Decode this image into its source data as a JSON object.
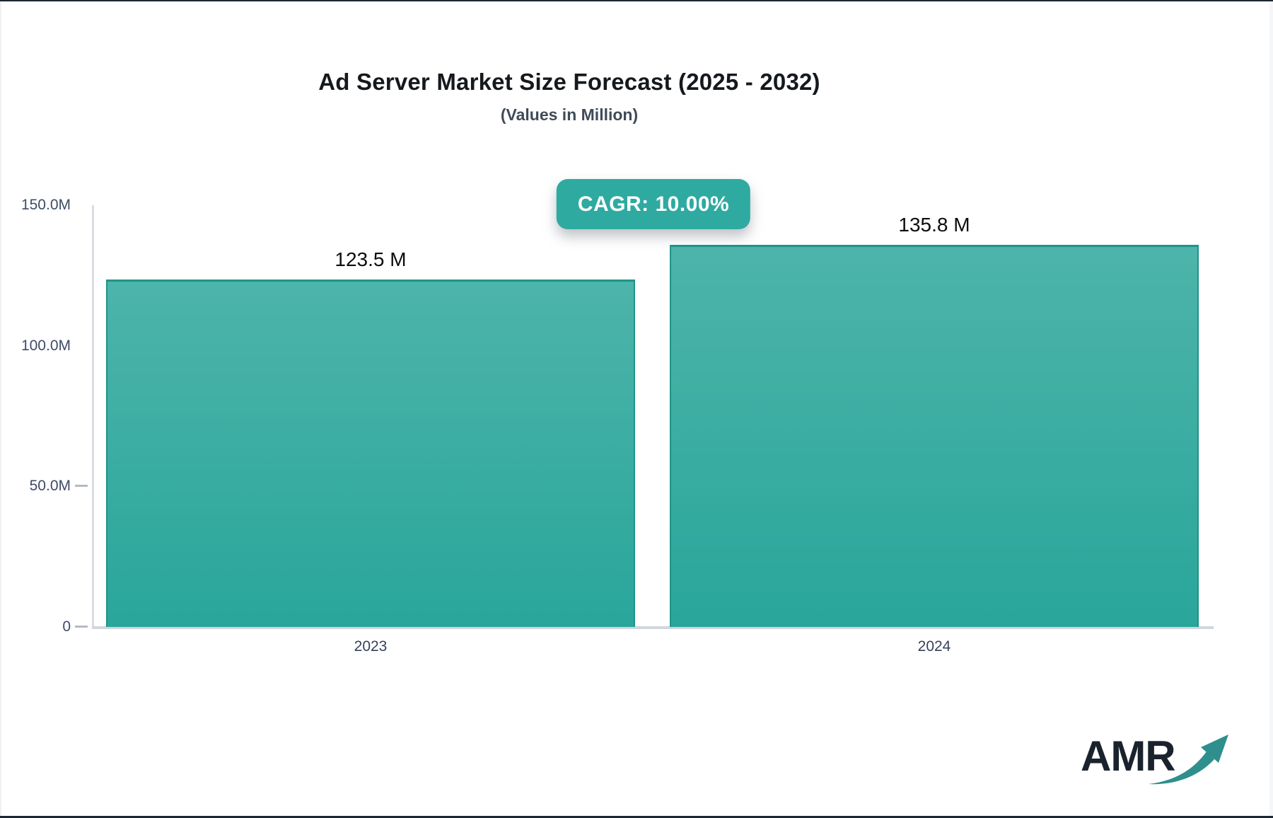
{
  "chart_data": {
    "type": "bar",
    "title": "Ad Server Market Size Forecast (2025 - 2032)",
    "subtitle": "(Values in Million)",
    "badge_label": "CAGR: 10.00%",
    "cagr_percent": "10.00%",
    "categories": [
      "2023",
      "2024"
    ],
    "values": [
      123.5,
      135.8
    ],
    "value_labels": [
      "123.5 M",
      "135.8 M"
    ],
    "unit": "Million",
    "ylim": [
      0,
      150
    ],
    "y_axis_labels": [
      {
        "text": "150.0M",
        "value": 150,
        "tick": false
      },
      {
        "text": "100.0M",
        "value": 100,
        "tick": false
      },
      {
        "text": "50.0M",
        "value": 50,
        "tick": true
      },
      {
        "text": "0",
        "value": 0,
        "tick": true
      }
    ],
    "grid": false,
    "legend": false,
    "colors": {
      "bar_gradient_top": "#4db4aa",
      "bar_gradient_bottom": "#29a69a",
      "bar_border": "#1f948a",
      "badge_background": "#2faaa1",
      "badge_text": "#ffffff",
      "axis_line": "#d6d9df",
      "axis_label": "#3f4c66",
      "title_text": "#15191d"
    }
  },
  "logo": {
    "text": "AMR",
    "arrow_icon": "growth-arrow-icon",
    "arrow_color": "#2f8f8c"
  }
}
